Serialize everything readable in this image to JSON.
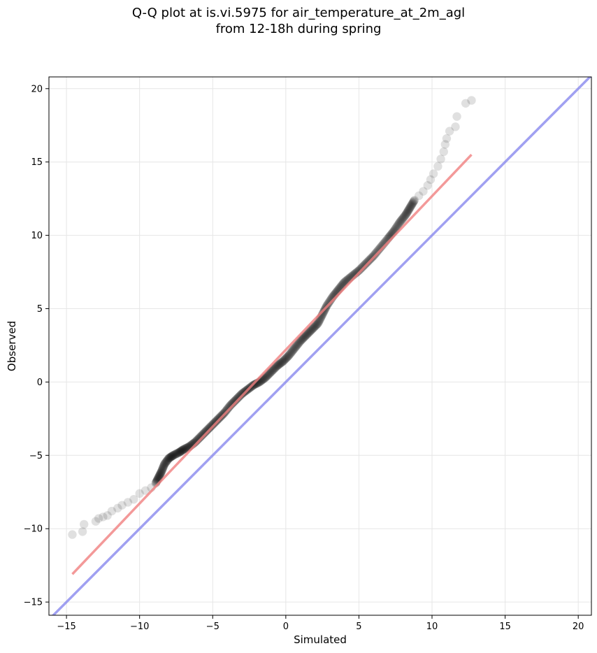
{
  "chart_data": {
    "type": "scatter",
    "title": "Q-Q plot at is.vi.5975 for air_temperature_at_2m_agl",
    "subtitle": "from 12-18h during spring",
    "xlabel": "Simulated",
    "ylabel": "Observed",
    "xlim": [
      -16.2,
      20.9
    ],
    "ylim": [
      -15.9,
      20.8
    ],
    "xticks": [
      -15,
      -10,
      -5,
      0,
      5,
      10,
      15,
      20
    ],
    "yticks": [
      -15,
      -10,
      -5,
      0,
      5,
      10,
      15,
      20
    ],
    "xtick_labels": [
      "−15",
      "−10",
      "−5",
      "0",
      "5",
      "10",
      "15",
      "20"
    ],
    "ytick_labels": [
      "−15",
      "−10",
      "−5",
      "0",
      "5",
      "10",
      "15",
      "20"
    ],
    "grid": true,
    "quantile_points": [
      [
        -14.6,
        -10.4
      ],
      [
        -13.9,
        -10.2
      ],
      [
        -13.8,
        -9.7
      ],
      [
        -13.0,
        -9.5
      ],
      [
        -12.8,
        -9.3
      ],
      [
        -12.5,
        -9.2
      ],
      [
        -12.2,
        -9.1
      ],
      [
        -11.9,
        -8.8
      ],
      [
        -11.5,
        -8.6
      ],
      [
        -11.2,
        -8.4
      ],
      [
        -10.8,
        -8.2
      ],
      [
        -10.4,
        -8.0
      ],
      [
        -10.0,
        -7.6
      ],
      [
        -9.6,
        -7.4
      ],
      [
        -9.2,
        -7.2
      ],
      [
        -8.9,
        -6.9
      ],
      [
        -8.7,
        -6.5
      ],
      [
        -8.5,
        -6.1
      ],
      [
        -8.3,
        -5.6
      ],
      [
        -8.0,
        -5.2
      ],
      [
        -7.7,
        -5.0
      ],
      [
        -7.3,
        -4.8
      ],
      [
        -7.0,
        -4.6
      ],
      [
        -6.6,
        -4.4
      ],
      [
        -6.2,
        -4.1
      ],
      [
        -5.8,
        -3.7
      ],
      [
        -5.4,
        -3.3
      ],
      [
        -5.0,
        -2.9
      ],
      [
        -4.6,
        -2.5
      ],
      [
        -4.2,
        -2.1
      ],
      [
        -3.8,
        -1.6
      ],
      [
        -3.4,
        -1.2
      ],
      [
        -3.0,
        -0.8
      ],
      [
        -2.6,
        -0.5
      ],
      [
        -2.2,
        -0.2
      ],
      [
        -1.8,
        0.0
      ],
      [
        -1.4,
        0.3
      ],
      [
        -1.0,
        0.7
      ],
      [
        -0.6,
        1.1
      ],
      [
        -0.2,
        1.4
      ],
      [
        0.2,
        1.8
      ],
      [
        0.6,
        2.3
      ],
      [
        1.0,
        2.8
      ],
      [
        1.4,
        3.2
      ],
      [
        1.8,
        3.6
      ],
      [
        2.2,
        4.0
      ],
      [
        2.5,
        4.6
      ],
      [
        2.8,
        5.2
      ],
      [
        3.2,
        5.8
      ],
      [
        3.6,
        6.3
      ],
      [
        4.0,
        6.8
      ],
      [
        4.5,
        7.2
      ],
      [
        5.0,
        7.6
      ],
      [
        5.5,
        8.1
      ],
      [
        6.0,
        8.6
      ],
      [
        6.5,
        9.2
      ],
      [
        7.0,
        9.8
      ],
      [
        7.4,
        10.3
      ],
      [
        7.8,
        10.9
      ],
      [
        8.2,
        11.4
      ],
      [
        8.5,
        11.9
      ],
      [
        8.8,
        12.4
      ],
      [
        9.1,
        12.7
      ],
      [
        9.4,
        13.0
      ],
      [
        9.7,
        13.4
      ],
      [
        9.9,
        13.8
      ],
      [
        10.1,
        14.2
      ],
      [
        10.4,
        14.7
      ],
      [
        10.6,
        15.2
      ],
      [
        10.8,
        15.7
      ],
      [
        10.9,
        16.2
      ],
      [
        11.0,
        16.6
      ],
      [
        11.2,
        17.1
      ],
      [
        11.6,
        17.4
      ],
      [
        11.7,
        18.1
      ],
      [
        12.3,
        19.0
      ],
      [
        12.7,
        19.2
      ]
    ],
    "reference_lines": [
      {
        "kind": "fit",
        "color": "#f08080",
        "x": [
          -14.6,
          12.7
        ],
        "y": [
          -13.1,
          15.5
        ]
      },
      {
        "kind": "1:1",
        "color": "#8888ee",
        "x": [
          -16.2,
          20.9
        ],
        "y": [
          -16.2,
          20.9
        ]
      }
    ],
    "point_color": "#000000"
  }
}
